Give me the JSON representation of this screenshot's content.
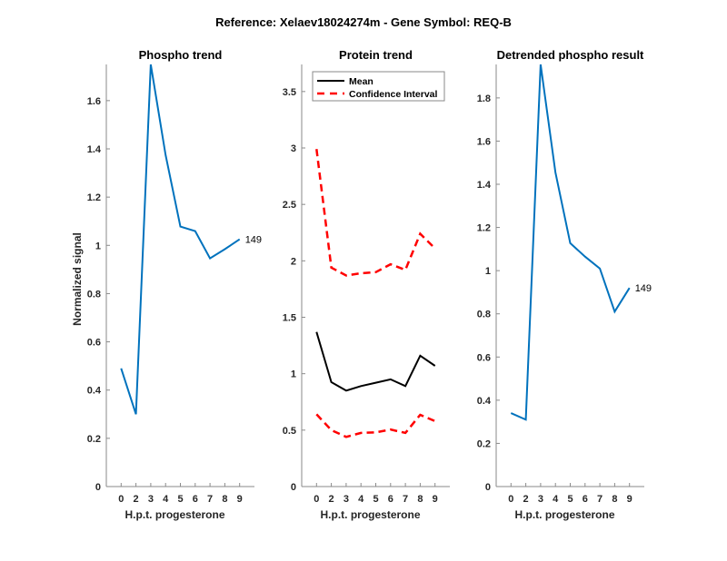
{
  "figure_title": "Reference:  Xelaev18024274m - Gene Symbol:  REQ-B",
  "colors": {
    "phospho": "#0072BD",
    "mean": "#000000",
    "ci": "#FF0000",
    "axis": "#262626"
  },
  "chart_data": [
    {
      "type": "line",
      "title": "Phospho trend",
      "xlabel": "H.p.t. progesterone",
      "ylabel": "Normalized signal",
      "x_tick_labels": [
        "0",
        "2",
        "3",
        "4",
        "5",
        "6",
        "7",
        "8",
        "9"
      ],
      "ylim": [
        0,
        1.75
      ],
      "y_ticks": [
        "0",
        "0.2",
        "0.4",
        "0.6",
        "0.8",
        "1",
        "1.2",
        "1.4",
        "1.6"
      ],
      "y_tick_values": [
        0,
        0.2,
        0.4,
        0.6,
        0.8,
        1,
        1.2,
        1.4,
        1.6
      ],
      "series": [
        {
          "name": "Phospho",
          "values": [
            0.49,
            0.3,
            1.75,
            1.375,
            1.078,
            1.059,
            0.946,
            0.984,
            1.025
          ]
        }
      ],
      "annotation": "149"
    },
    {
      "type": "line",
      "title": "Protein trend",
      "xlabel": "H.p.t. progesterone",
      "ylabel": "",
      "x_tick_labels": [
        "0",
        "2",
        "3",
        "4",
        "5",
        "6",
        "7",
        "8",
        "9"
      ],
      "ylim": [
        0,
        3.74
      ],
      "y_ticks": [
        "0",
        "0.5",
        "1",
        "1.5",
        "2",
        "2.5",
        "3",
        "3.5"
      ],
      "y_tick_values": [
        0,
        0.5,
        1,
        1.5,
        2,
        2.5,
        3,
        3.5
      ],
      "legend": {
        "position": "top-left",
        "entries": [
          "Mean",
          "Confidence Interval"
        ]
      },
      "series": [
        {
          "name": "Mean",
          "values": [
            1.37,
            0.925,
            0.85,
            0.89,
            0.92,
            0.95,
            0.89,
            1.16,
            1.07
          ]
        },
        {
          "name": "Confidence Interval (upper)",
          "values": [
            2.99,
            1.94,
            1.87,
            1.89,
            1.9,
            1.97,
            1.92,
            2.24,
            2.11
          ]
        },
        {
          "name": "Confidence Interval (lower)",
          "values": [
            0.64,
            0.5,
            0.44,
            0.475,
            0.48,
            0.505,
            0.475,
            0.635,
            0.58
          ]
        }
      ]
    },
    {
      "type": "line",
      "title": "Detrended phospho result",
      "xlabel": "H.p.t. progesterone",
      "ylabel": "",
      "x_tick_labels": [
        "0",
        "2",
        "3",
        "4",
        "5",
        "6",
        "7",
        "8",
        "9"
      ],
      "ylim": [
        0,
        1.955
      ],
      "y_ticks": [
        "0",
        "0.2",
        "0.4",
        "0.6",
        "0.8",
        "1",
        "1.2",
        "1.4",
        "1.6",
        "1.8"
      ],
      "y_tick_values": [
        0,
        0.2,
        0.4,
        0.6,
        0.8,
        1,
        1.2,
        1.4,
        1.6,
        1.8
      ],
      "series": [
        {
          "name": "Detrended phospho",
          "values": [
            0.34,
            0.31,
            1.955,
            1.455,
            1.127,
            1.065,
            1.01,
            0.81,
            0.92
          ]
        }
      ],
      "annotation": "149"
    }
  ]
}
